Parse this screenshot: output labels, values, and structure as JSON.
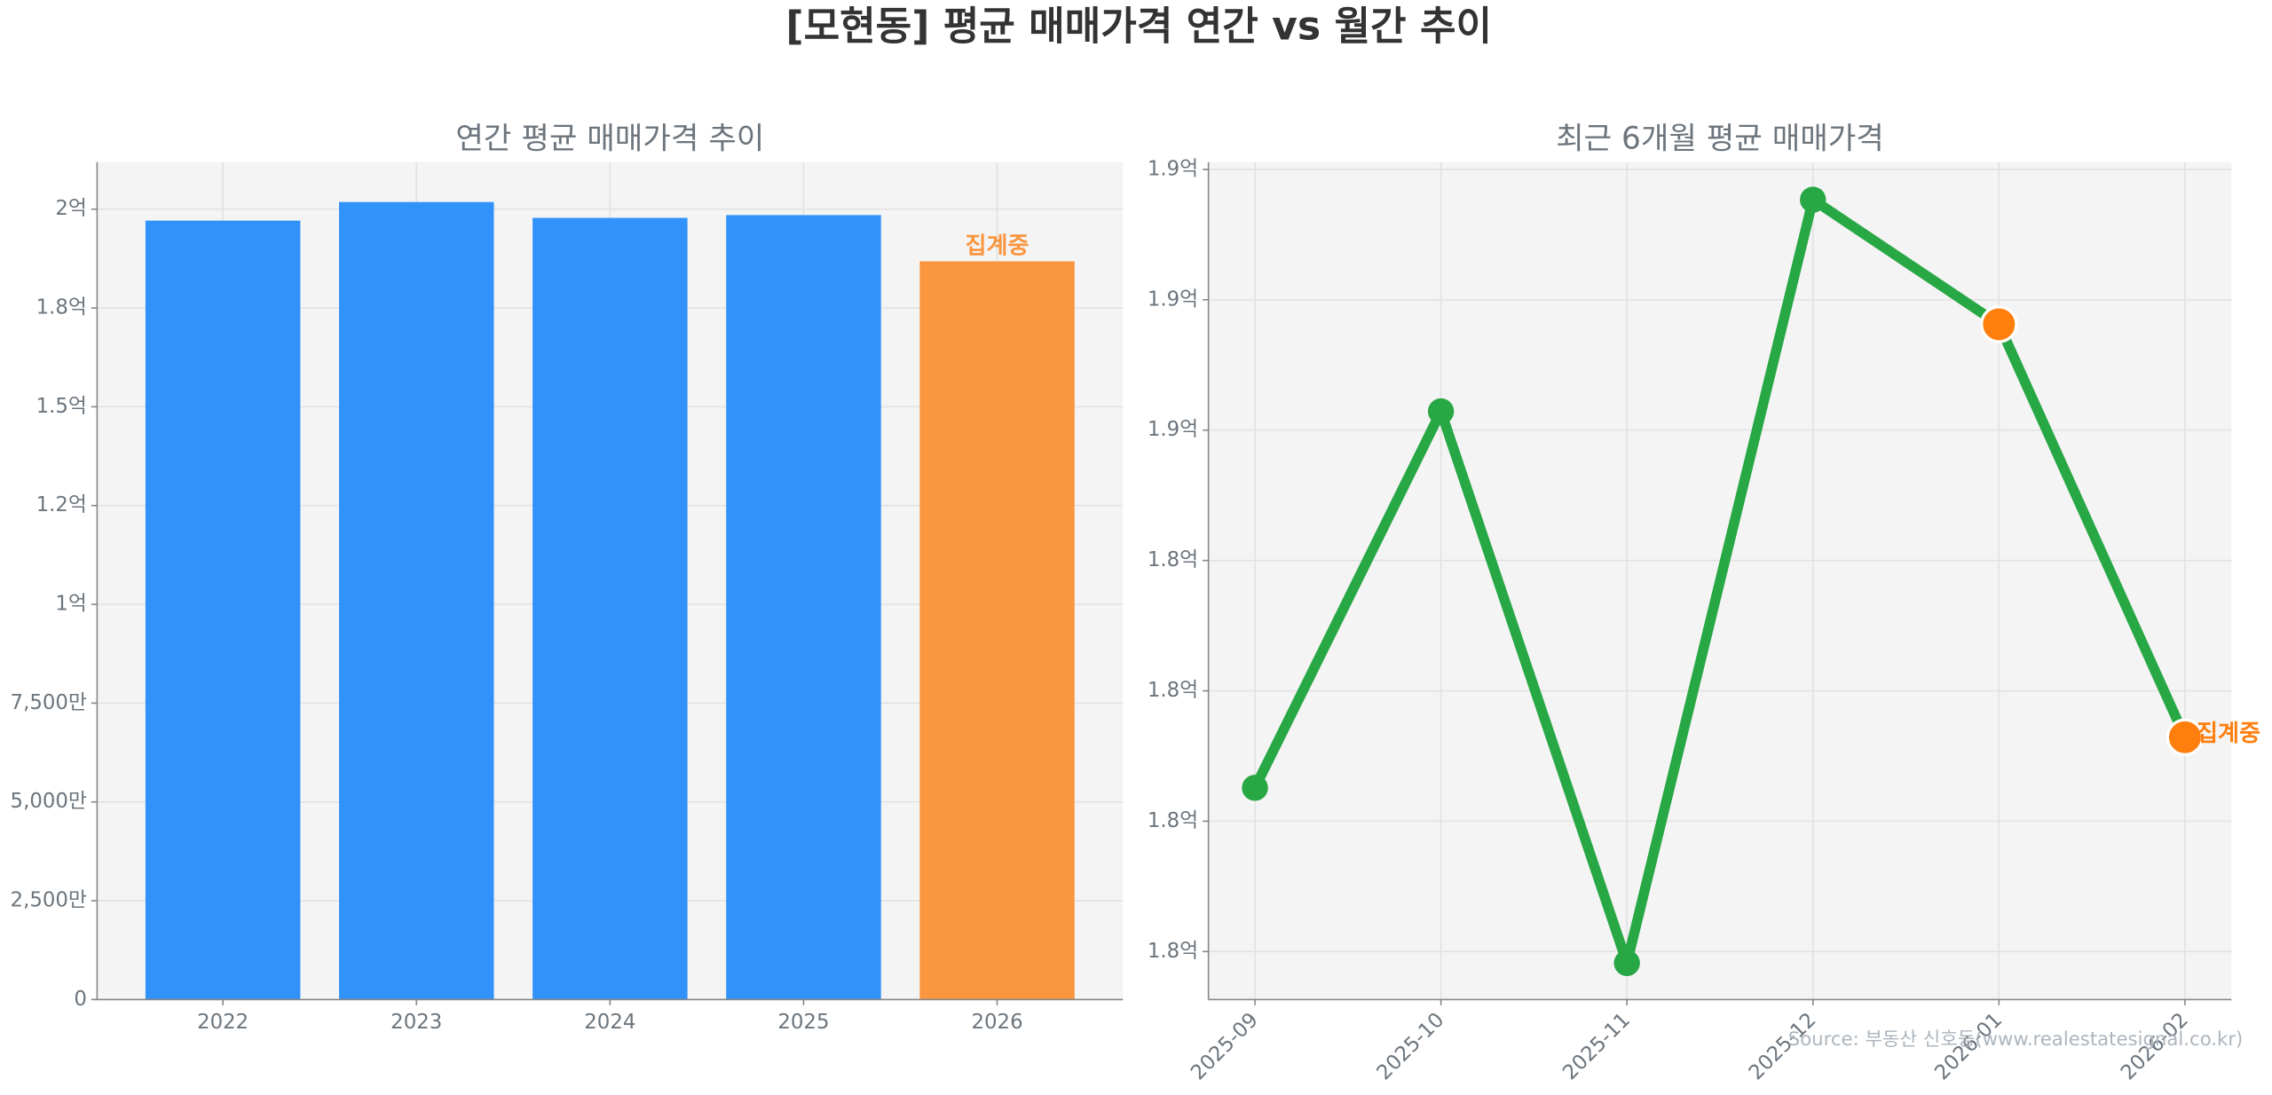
{
  "title": "[모현동] 평균 매매가격 연간 vs 월간 추이",
  "source": "Source: 부동산 신호등(www.realestatesignal.co.kr)",
  "chart_data": [
    {
      "type": "bar",
      "title": "연간 평균 매매가격 추이",
      "categories": [
        "2022",
        "2023",
        "2024",
        "2025",
        "2026"
      ],
      "values": [
        197100000,
        201800000,
        197800000,
        198500000,
        186800000
      ],
      "colors": [
        "#3192fa",
        "#3192fa",
        "#3192fa",
        "#3192fa",
        "#f9963f"
      ],
      "ylim": [
        0,
        211900000
      ],
      "yticks": [
        0,
        {
          "value": 25000000,
          "label": "2,500만"
        },
        {
          "value": 50000000,
          "label": "5,000만"
        },
        {
          "value": 75000000,
          "label": "7,500만"
        },
        {
          "value": 100000000,
          "label": "1억"
        },
        {
          "value": 125000000,
          "label": "1.2억"
        },
        {
          "value": 150000000,
          "label": "1.5억"
        },
        {
          "value": 175000000,
          "label": "1.8억"
        },
        {
          "value": 200000000,
          "label": "2억"
        }
      ],
      "grid": true,
      "annotations": [
        {
          "text": "집계중",
          "index": 4,
          "color": "#f9963f"
        }
      ]
    },
    {
      "type": "line",
      "title": "최근 6개월 평균 매매가격",
      "categories": [
        "2025-09",
        "2025-10",
        "2025-11",
        "2025-12",
        "2026-01",
        "2026-02"
      ],
      "values": [
        178140000,
        185360000,
        174780000,
        189420000,
        187030000,
        179110000
      ],
      "color": "#28a745",
      "marker_colors": [
        "#28a745",
        "#28a745",
        "#28a745",
        "#28a745",
        "#ff7f0e",
        "#ff7f0e"
      ],
      "ylim": [
        174080000,
        190140000
      ],
      "yticks": [
        {
          "value": 175000000,
          "label": "1.8억"
        },
        {
          "value": 177500000,
          "label": "1.8억"
        },
        {
          "value": 180000000,
          "label": "1.8억"
        },
        {
          "value": 182500000,
          "label": "1.8억"
        },
        {
          "value": 185000000,
          "label": "1.9억"
        },
        {
          "value": 187500000,
          "label": "1.9억"
        },
        {
          "value": 190000000,
          "label": "1.9억"
        }
      ],
      "grid": true,
      "annotations": [
        {
          "text": "집계중",
          "index": 5,
          "color": "#ff7f0e"
        }
      ]
    }
  ]
}
